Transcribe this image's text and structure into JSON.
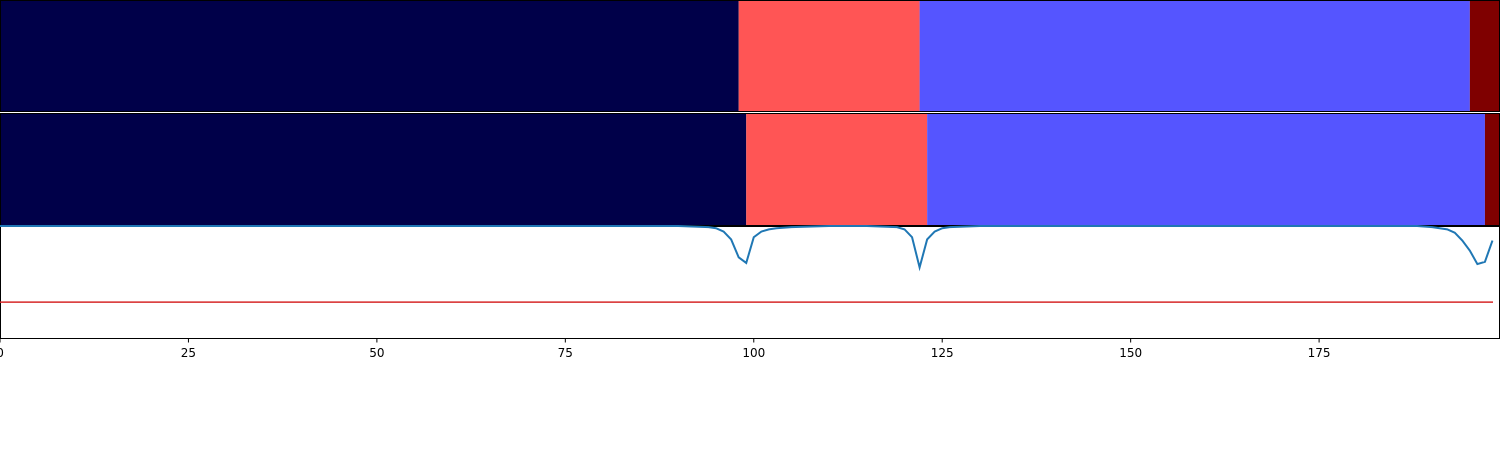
{
  "chart_data": {
    "type": "segmentation-timeline",
    "xlim": [
      0,
      199
    ],
    "x_ticks": [
      0,
      25,
      50,
      75,
      100,
      125,
      150,
      175
    ],
    "x_tick_labels": [
      "0",
      "25",
      "50",
      "75",
      "100",
      "125",
      "150",
      "175"
    ],
    "segment_rows": [
      {
        "segments": [
          {
            "start": 0,
            "end": 98,
            "color": "#000049"
          },
          {
            "start": 98,
            "end": 122,
            "color": "#ff5555"
          },
          {
            "start": 122,
            "end": 195,
            "color": "#5555ff"
          },
          {
            "start": 195,
            "end": 199,
            "color": "#7f0000"
          }
        ]
      },
      {
        "segments": [
          {
            "start": 0,
            "end": 99,
            "color": "#000049"
          },
          {
            "start": 99,
            "end": 123,
            "color": "#ff5555"
          },
          {
            "start": 123,
            "end": 197,
            "color": "#5555ff"
          },
          {
            "start": 197,
            "end": 199,
            "color": "#7f0000"
          }
        ]
      }
    ],
    "line_panel": {
      "ylim": [
        0,
        1
      ],
      "threshold": {
        "value": 0.32,
        "color": "#d62728"
      },
      "series": {
        "color": "#1f77b4",
        "x": [
          0,
          10,
          20,
          30,
          40,
          50,
          60,
          70,
          80,
          90,
          94,
          95,
          96,
          97,
          98,
          99,
          100,
          101,
          102,
          103,
          105,
          110,
          115,
          119,
          120,
          121,
          122,
          123,
          124,
          125,
          126,
          130,
          140,
          150,
          160,
          170,
          180,
          188,
          190,
          192,
          193,
          194,
          195,
          196,
          197,
          198
        ],
        "y": [
          1.0,
          1.0,
          1.0,
          1.0,
          1.0,
          1.0,
          1.0,
          1.0,
          1.0,
          1.0,
          0.99,
          0.98,
          0.95,
          0.88,
          0.72,
          0.67,
          0.9,
          0.95,
          0.97,
          0.98,
          0.99,
          1.0,
          1.0,
          0.99,
          0.97,
          0.9,
          0.63,
          0.88,
          0.95,
          0.98,
          0.99,
          1.0,
          1.0,
          1.0,
          1.0,
          1.0,
          1.0,
          1.0,
          0.99,
          0.97,
          0.94,
          0.87,
          0.78,
          0.66,
          0.68,
          0.87
        ]
      }
    }
  }
}
